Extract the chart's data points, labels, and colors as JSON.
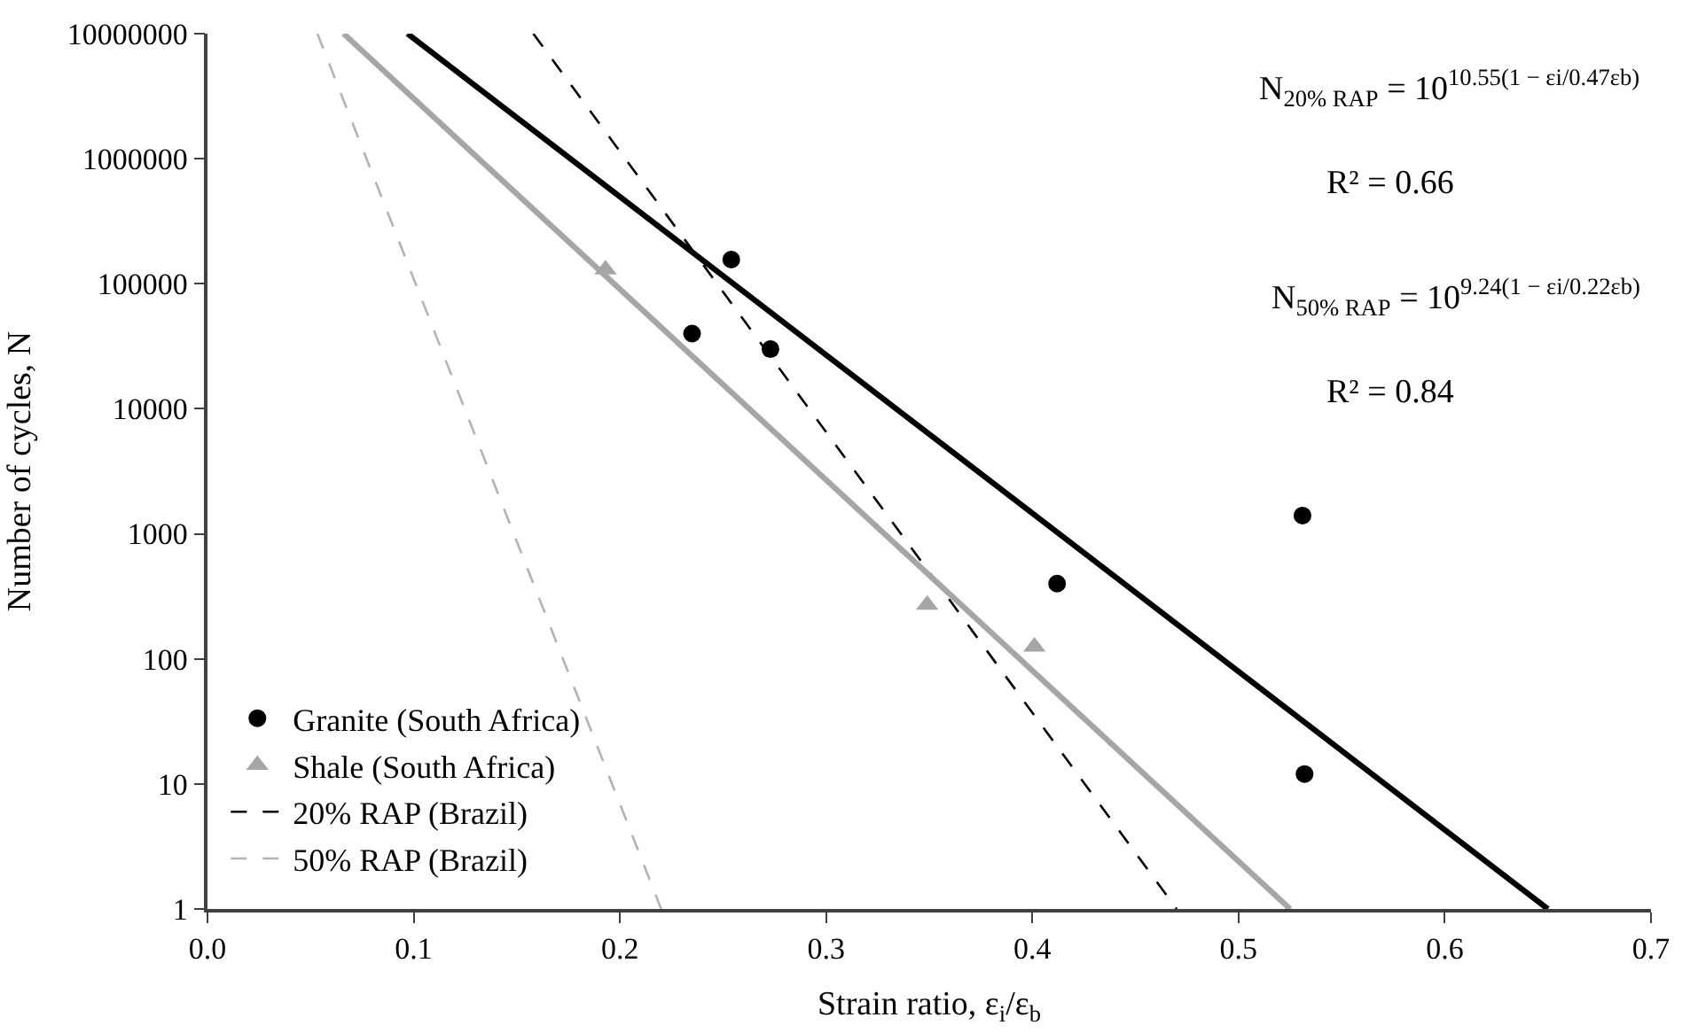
{
  "chart_data": {
    "type": "scatter",
    "xlabel": "Strain ratio, ε$_{i}$/ε$_{b}$",
    "ylabel": "Number of cycles, N",
    "log": "y",
    "legend": "bottom left",
    "xlim": [
      0,
      0.7
    ],
    "xticks": [
      {
        "value": 0,
        "label": "0.0"
      },
      0.1,
      0.2,
      0.3,
      0.4,
      0.5,
      0.6,
      0.7
    ],
    "ylim": [
      1,
      10000000
    ],
    "yticks": [
      1,
      10,
      100,
      1000,
      10000,
      100000,
      1000000,
      10000000
    ],
    "series": [
      {
        "name": "Granite (South Africa)",
        "marker": "circle",
        "color": "#000000",
        "x": [
          0.235,
          0.254,
          0.273,
          0.412,
          0.531,
          0.532
        ],
        "values": [
          40000,
          156000,
          30000,
          400,
          1400,
          12
        ]
      },
      {
        "name": "Shale (South Africa)",
        "marker": "triangle",
        "color": "#a6a6a6",
        "x": [
          0.193,
          0.349,
          0.401
        ],
        "values": [
          130000,
          270,
          125
        ]
      },
      {
        "name": "20% RAP (Brazil)",
        "type": "line",
        "line_style": "dashed",
        "color": "#000000",
        "x": [
          0.158,
          0.47
        ],
        "values": [
          10000000,
          1
        ]
      },
      {
        "name": "50% RAP (Brazil)",
        "type": "line",
        "line_style": "dashed",
        "color": "#b3b3b3",
        "x": [
          0.0533,
          0.22
        ],
        "values": [
          10000000,
          1
        ]
      },
      {
        "type": "line",
        "line_style": "solid",
        "color": "#000000",
        "x": [
          0.097,
          0.65
        ],
        "values": [
          10000000,
          1
        ]
      },
      {
        "type": "line",
        "line_style": "solid",
        "color": "#a6a6a6",
        "x": [
          0.066,
          0.525
        ],
        "values": [
          10000000,
          1
        ]
      }
    ],
    "annotations": [
      "N$_{20% RAP}$ = 10$^{10.55(1 − εi/0.47εb)}$",
      "R² = 0.66",
      "N$_{50% RAP}$ = 10$^{9.24(1 − εi/0.22εb)}$",
      "R² = 0.84"
    ]
  }
}
